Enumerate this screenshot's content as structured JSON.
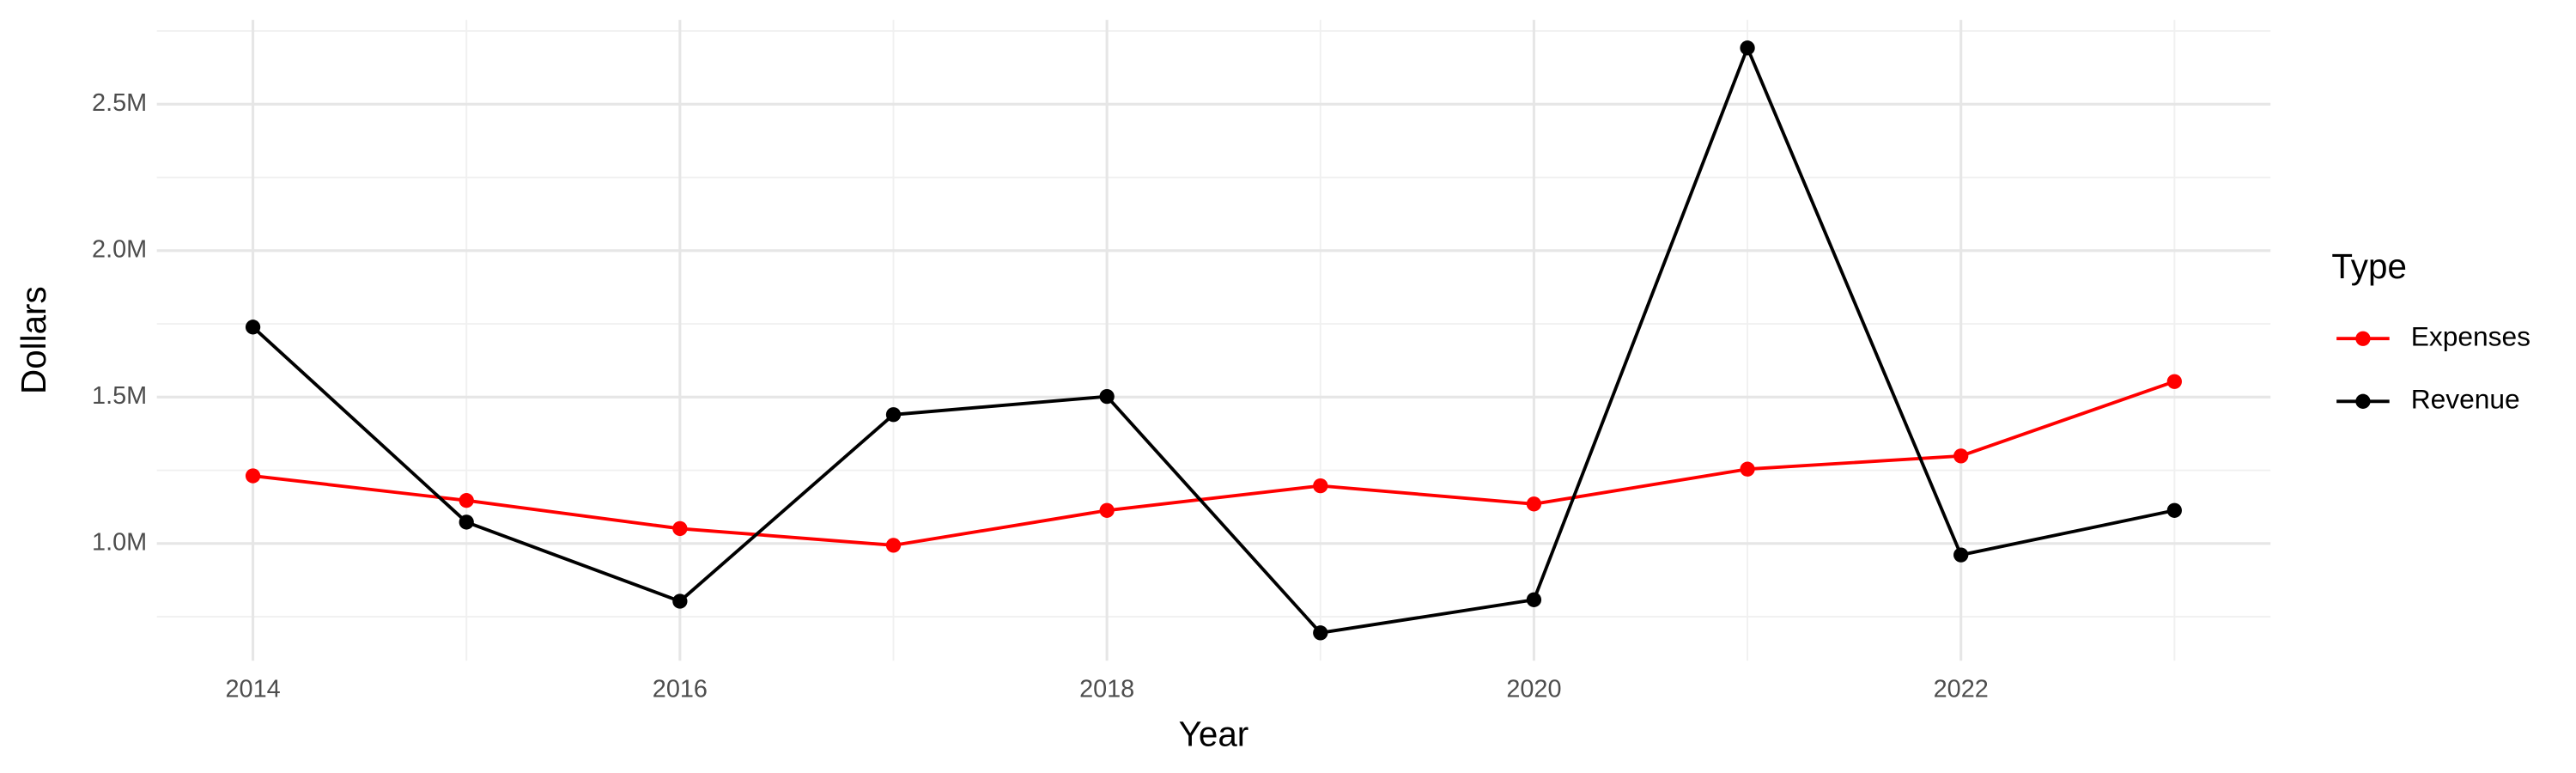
{
  "chart_data": {
    "type": "line",
    "x_label": "Year",
    "y_label": "Dollars",
    "legend_title": "Type",
    "x": [
      2014,
      2015,
      2016,
      2017,
      2018,
      2019,
      2020,
      2021,
      2022,
      2023
    ],
    "series": [
      {
        "name": "Expenses",
        "color": "#ff0000",
        "values": [
          1231000,
          1147000,
          1051000,
          994000,
          1113000,
          1197000,
          1135000,
          1254000,
          1299000,
          1553000
        ]
      },
      {
        "name": "Revenue",
        "color": "#000000",
        "values": [
          1739000,
          1073000,
          803000,
          1440000,
          1502000,
          695000,
          808000,
          2692000,
          961000,
          1113000
        ]
      }
    ],
    "xlim": [
      2013.55,
      2023.45
    ],
    "xticks": [
      2014,
      2016,
      2018,
      2020,
      2022
    ],
    "ylim": [
      600000,
      2788000
    ],
    "yticks": [
      {
        "value": 1000000,
        "label": "1.0M"
      },
      {
        "value": 1500000,
        "label": "1.5M"
      },
      {
        "value": 2000000,
        "label": "2.0M"
      },
      {
        "value": 2500000,
        "label": "2.5M"
      }
    ],
    "grid": true,
    "legend": "right"
  }
}
